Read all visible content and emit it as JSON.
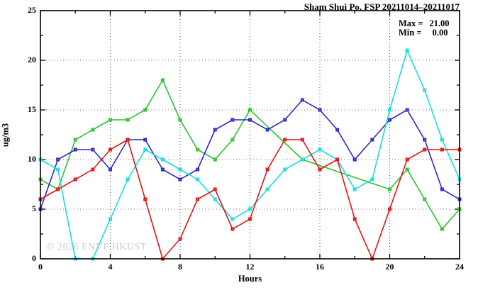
{
  "title": "Sham Shui Po, FSP 20211014–20211017",
  "watermark": "© 2026 ENVF HKUST",
  "legend": {
    "max_label": "Max =",
    "max_value": "21.00",
    "min_label": "Min =",
    "min_value": "0.00"
  },
  "axes": {
    "x_title": "Hours",
    "y_title": "ug/m3"
  },
  "chart_data": {
    "type": "line",
    "title": "Sham Shui Po, FSP 20211014–20211017",
    "xlabel": "Hours",
    "ylabel": "ug/m3",
    "xlim": [
      0,
      24
    ],
    "ylim": [
      0,
      25
    ],
    "x_ticks": [
      0,
      4,
      8,
      12,
      16,
      20,
      24
    ],
    "y_ticks": [
      0,
      5,
      10,
      15,
      20,
      25
    ],
    "x_minor_step": 2,
    "y_minor_step": 2.5,
    "grid": true,
    "legend_position": "top-right-inside",
    "max": 21.0,
    "min": 0.0,
    "x": [
      0,
      1,
      2,
      3,
      4,
      5,
      6,
      7,
      8,
      9,
      10,
      11,
      12,
      13,
      14,
      15,
      16,
      17,
      18,
      19,
      20,
      21,
      22,
      23,
      24
    ],
    "series": [
      {
        "name": "green-line",
        "color": "#2cc42c",
        "values": [
          8,
          7,
          12,
          13,
          14,
          14,
          15,
          18,
          14,
          11,
          10,
          12,
          15,
          null,
          null,
          10,
          null,
          null,
          null,
          null,
          7,
          9,
          6,
          3,
          5
        ]
      },
      {
        "name": "blue-line",
        "color": "#2b2bc8",
        "values": [
          5,
          10,
          11,
          11,
          9,
          12,
          12,
          9,
          8,
          9,
          13,
          14,
          14,
          13,
          14,
          16,
          15,
          13,
          10,
          12,
          14,
          15,
          12,
          7,
          6
        ]
      },
      {
        "name": "cyan-line",
        "color": "#18dede",
        "values": [
          10,
          9,
          0,
          0,
          4,
          8,
          11,
          10,
          9,
          8,
          6,
          4,
          5,
          7,
          9,
          10,
          11,
          10,
          7,
          8,
          15,
          21,
          17,
          12,
          8
        ]
      },
      {
        "name": "red-line",
        "color": "#e61414",
        "values": [
          6,
          7,
          8,
          9,
          11,
          12,
          6,
          0,
          2,
          6,
          7,
          3,
          4,
          9,
          12,
          12,
          9,
          10,
          4,
          0,
          5,
          10,
          11,
          11,
          11
        ]
      }
    ]
  }
}
